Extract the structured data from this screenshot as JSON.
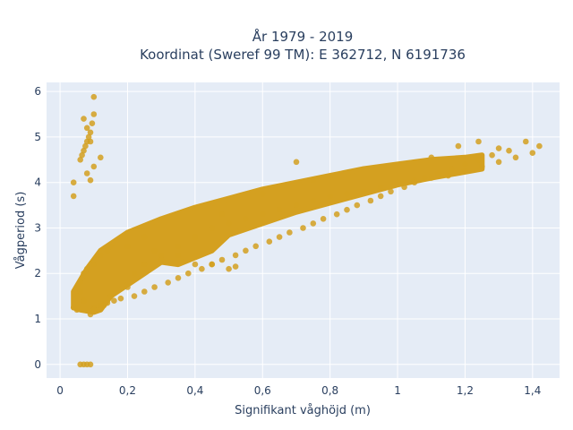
{
  "chart_data": {
    "type": "scatter",
    "title_line1": "År 1979 - 2019",
    "title_line2": "Koordinat (Sweref 99 TM): E 362712, N 6191736",
    "xlabel": "Signifikant våghöjd (m)",
    "ylabel": "Vågperiod (s)",
    "xlim": [
      -0.04,
      1.48
    ],
    "ylim": [
      -0.3,
      6.2
    ],
    "x_ticks": [
      0,
      0.2,
      0.4,
      0.6,
      0.8,
      1,
      1.2,
      1.4
    ],
    "x_tick_labels": [
      "0",
      "0,2",
      "0,4",
      "0,6",
      "0,8",
      "1",
      "1,2",
      "1,4"
    ],
    "y_ticks": [
      0,
      1,
      2,
      3,
      4,
      5,
      6
    ],
    "y_tick_labels": [
      "0",
      "1",
      "2",
      "3",
      "4",
      "5",
      "6"
    ],
    "grid": true,
    "series": [
      {
        "color": "#d4a020",
        "x": [
          0.06,
          0.07,
          0.08,
          0.09,
          0.04,
          0.04,
          0.06,
          0.065,
          0.07,
          0.075,
          0.08,
          0.085,
          0.09,
          0.095,
          0.1,
          0.07,
          0.08,
          0.09,
          0.1,
          0.12,
          0.09,
          0.1,
          0.08,
          0.06,
          0.07,
          0.09,
          0.1,
          0.05,
          0.04,
          0.05,
          0.06,
          0.07,
          0.08,
          0.1,
          0.12,
          0.14,
          0.13,
          0.1,
          0.15,
          0.2,
          0.22,
          0.25,
          0.3,
          0.35,
          0.4,
          0.45,
          0.5,
          0.55,
          0.6,
          0.65,
          0.7,
          0.75,
          0.8,
          0.85,
          0.9,
          0.95,
          1.0,
          1.05,
          1.1,
          1.15,
          1.2,
          1.25,
          1.3,
          1.35,
          1.4,
          1.42,
          1.38,
          1.33,
          1.28,
          1.24,
          1.2,
          1.16,
          1.12,
          1.08,
          1.05,
          1.02,
          0.98,
          0.95,
          0.92,
          0.88,
          0.85,
          0.82,
          0.78,
          0.75,
          0.72,
          0.68,
          0.65,
          0.62,
          0.58,
          0.55,
          0.52,
          0.48,
          0.45,
          0.42,
          0.38,
          0.35,
          0.32,
          0.28,
          0.25,
          0.22,
          0.18,
          0.16,
          0.14,
          0.12,
          0.1,
          0.3,
          0.4,
          0.5,
          0.45,
          0.52,
          0.35,
          0.28,
          0.48,
          0.2,
          0.25,
          0.15,
          1.3,
          1.24,
          1.1,
          1.18,
          0.75,
          0.6,
          0.7
        ],
        "y": [
          0,
          0,
          0,
          0,
          3.7,
          4.0,
          4.5,
          4.6,
          4.7,
          4.8,
          4.9,
          5.0,
          5.1,
          5.3,
          5.5,
          5.4,
          5.2,
          4.9,
          5.88,
          4.55,
          4.05,
          4.35,
          4.2,
          1.6,
          1.4,
          1.1,
          1.25,
          1.2,
          1.25,
          1.5,
          1.8,
          2.0,
          2.1,
          2.2,
          2.4,
          2.5,
          1.3,
          1.2,
          1.5,
          1.7,
          2.0,
          2.2,
          2.4,
          2.6,
          2.8,
          3.0,
          3.1,
          3.2,
          3.3,
          3.4,
          3.5,
          3.6,
          3.7,
          3.75,
          3.8,
          3.9,
          4.0,
          4.05,
          4.1,
          4.15,
          4.25,
          4.35,
          4.45,
          4.55,
          4.65,
          4.8,
          4.9,
          4.7,
          4.6,
          4.5,
          4.4,
          4.3,
          4.2,
          4.1,
          4.0,
          3.9,
          3.8,
          3.7,
          3.6,
          3.5,
          3.4,
          3.3,
          3.2,
          3.1,
          3.0,
          2.9,
          2.8,
          2.7,
          2.6,
          2.5,
          2.4,
          2.3,
          2.2,
          2.1,
          2.0,
          1.9,
          1.8,
          1.7,
          1.6,
          1.5,
          1.45,
          1.4,
          1.35,
          1.3,
          1.2,
          2.3,
          2.2,
          2.1,
          2.2,
          2.15,
          2.4,
          2.5,
          3.3,
          2.6,
          2.8,
          2.6,
          4.75,
          4.9,
          4.55,
          4.8,
          4.05,
          3.75,
          4.45
        ]
      }
    ]
  }
}
